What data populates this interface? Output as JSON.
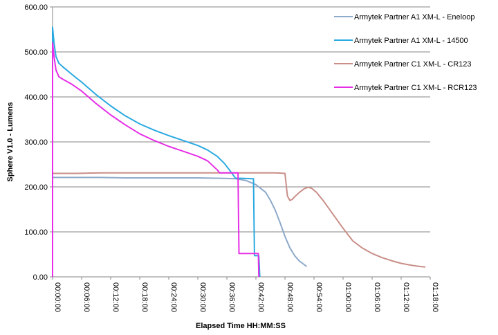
{
  "chart_data": {
    "type": "line",
    "title": "",
    "xlabel": "Elapsed Time HH:MM:SS",
    "ylabel": "Sphere V1.0 - Lumens",
    "xlim": [
      0,
      78
    ],
    "ylim": [
      0,
      600
    ],
    "grid": true,
    "legend_position": "right",
    "y_ticks": [
      "0.00",
      "100.00",
      "200.00",
      "300.00",
      "400.00",
      "500.00",
      "600.00"
    ],
    "x_ticks": [
      "00:00:00",
      "00:06:00",
      "00:12:00",
      "00:18:00",
      "00:24:00",
      "00:30:00",
      "00:36:00",
      "00:42:00",
      "00:48:00",
      "00:54:00",
      "01:00:00",
      "01:06:00",
      "01:12:00",
      "01:18:00"
    ],
    "series": [
      {
        "name": "Armytek Partner A1 XM-L - Eneloop",
        "color": "#8ea9c9",
        "points": [
          [
            0,
            221
          ],
          [
            5,
            221
          ],
          [
            10,
            221
          ],
          [
            15,
            220
          ],
          [
            20,
            220
          ],
          [
            25,
            220
          ],
          [
            30,
            220
          ],
          [
            35,
            219
          ],
          [
            38,
            218
          ],
          [
            40,
            214
          ],
          [
            42,
            205
          ],
          [
            44,
            188
          ],
          [
            45,
            170
          ],
          [
            46,
            148
          ],
          [
            47,
            120
          ],
          [
            48,
            90
          ],
          [
            49,
            65
          ],
          [
            50,
            47
          ],
          [
            51,
            35
          ],
          [
            52,
            27
          ],
          [
            52.5,
            23
          ]
        ]
      },
      {
        "name": "Armytek Partner A1 XM-L - 14500",
        "color": "#2aa9e0",
        "points": [
          [
            0,
            0
          ],
          [
            0,
            555
          ],
          [
            0.3,
            520
          ],
          [
            0.7,
            490
          ],
          [
            1.3,
            475
          ],
          [
            2,
            468
          ],
          [
            4,
            450
          ],
          [
            6,
            433
          ],
          [
            9,
            405
          ],
          [
            12,
            380
          ],
          [
            15,
            358
          ],
          [
            18,
            340
          ],
          [
            21,
            326
          ],
          [
            24,
            314
          ],
          [
            27,
            303
          ],
          [
            30,
            292
          ],
          [
            32,
            282
          ],
          [
            34,
            268
          ],
          [
            35.5,
            252
          ],
          [
            36.5,
            238
          ],
          [
            37.2,
            228
          ],
          [
            37.8,
            219
          ],
          [
            39,
            219
          ],
          [
            41.5,
            218
          ],
          [
            41.7,
            47
          ],
          [
            42.6,
            47
          ],
          [
            42.8,
            0
          ]
        ]
      },
      {
        "name": "Armytek Partner C1 XM-L - CR123",
        "color": "#c98e88",
        "points": [
          [
            0,
            230
          ],
          [
            5,
            230
          ],
          [
            10,
            231
          ],
          [
            15,
            231
          ],
          [
            20,
            231
          ],
          [
            25,
            231
          ],
          [
            30,
            231
          ],
          [
            35,
            231
          ],
          [
            40,
            231
          ],
          [
            46,
            231
          ],
          [
            48,
            230
          ],
          [
            48.5,
            180
          ],
          [
            49,
            170
          ],
          [
            49.5,
            172
          ],
          [
            50,
            178
          ],
          [
            51,
            188
          ],
          [
            52,
            196
          ],
          [
            52.8,
            199
          ],
          [
            53.5,
            197
          ],
          [
            54.5,
            188
          ],
          [
            56,
            168
          ],
          [
            58,
            138
          ],
          [
            60,
            108
          ],
          [
            62,
            80
          ],
          [
            64,
            64
          ],
          [
            66,
            52
          ],
          [
            68,
            43
          ],
          [
            70,
            36
          ],
          [
            72,
            30
          ],
          [
            74,
            26
          ],
          [
            76,
            23
          ],
          [
            77,
            22
          ]
        ]
      },
      {
        "name": "Armytek Partner C1 XM-L - RCR123",
        "color": "#e62ee6",
        "points": [
          [
            0,
            0
          ],
          [
            0,
            520
          ],
          [
            0.3,
            490
          ],
          [
            0.7,
            460
          ],
          [
            1.3,
            445
          ],
          [
            2,
            440
          ],
          [
            4,
            428
          ],
          [
            6,
            413
          ],
          [
            9,
            385
          ],
          [
            12,
            360
          ],
          [
            15,
            338
          ],
          [
            18,
            318
          ],
          [
            21,
            303
          ],
          [
            24,
            290
          ],
          [
            27,
            279
          ],
          [
            30,
            268
          ],
          [
            32,
            258
          ],
          [
            33,
            248
          ],
          [
            34,
            238
          ],
          [
            34.5,
            231
          ],
          [
            38.3,
            231
          ],
          [
            38.5,
            52
          ],
          [
            42.5,
            52
          ],
          [
            42.6,
            0
          ]
        ]
      }
    ]
  }
}
